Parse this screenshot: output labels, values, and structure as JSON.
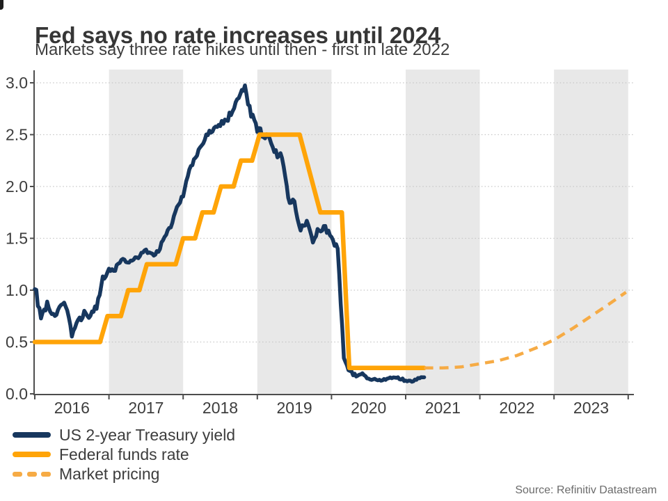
{
  "chart_data": {
    "type": "line",
    "title": "Fed says no rate increases until 2024",
    "subtitle": "Markets say three rate hikes until then - first in late 2022",
    "xlabel": "",
    "ylabel": "",
    "ylim": [
      0,
      3.1
    ],
    "x_range_years": [
      2016.0,
      2024.07
    ],
    "grid": "dotted-horizontal",
    "legend_position": "bottom-left",
    "shaded_years": [
      2017,
      2019,
      2021,
      2023
    ],
    "y_tick_values": [
      3.0,
      2.5,
      2.0,
      1.5,
      1.0,
      0.5,
      0.0
    ],
    "y_tick_labels": [
      "3.0",
      "2.5",
      "2.0",
      "1.5",
      "1.0",
      "0.5",
      "0.0"
    ],
    "x_tick_labels": [
      "2016",
      "2017",
      "2018",
      "2019",
      "2020",
      "2021",
      "2022",
      "2023"
    ],
    "series": [
      {
        "name": "US 2-year Treasury yield",
        "color": "#17375e",
        "style": "solid",
        "x_start": 2016.0,
        "x_step": 0.0833333,
        "values": [
          1.05,
          0.72,
          0.88,
          0.74,
          0.82,
          0.88,
          0.58,
          0.7,
          0.78,
          0.76,
          0.82,
          1.1,
          1.2,
          1.2,
          1.3,
          1.26,
          1.3,
          1.34,
          1.38,
          1.33,
          1.38,
          1.5,
          1.62,
          1.8,
          1.92,
          2.15,
          2.28,
          2.4,
          2.52,
          2.54,
          2.6,
          2.63,
          2.75,
          2.85,
          2.95,
          2.7,
          2.55,
          2.5,
          2.48,
          2.32,
          2.3,
          1.9,
          1.85,
          1.58,
          1.66,
          1.5,
          1.58,
          1.6,
          1.52,
          1.4,
          0.35,
          0.22,
          0.17,
          0.19,
          0.14,
          0.14,
          0.13,
          0.15,
          0.16,
          0.15,
          0.13,
          0.12,
          0.15,
          0.16
        ]
      },
      {
        "name": "Federal funds rate",
        "color": "#ffa408",
        "style": "solid",
        "points": [
          [
            2016.0,
            0.5
          ],
          [
            2016.88,
            0.5
          ],
          [
            2016.98,
            0.75
          ],
          [
            2017.16,
            0.75
          ],
          [
            2017.26,
            1.0
          ],
          [
            2017.41,
            1.0
          ],
          [
            2017.51,
            1.25
          ],
          [
            2017.9,
            1.25
          ],
          [
            2018.0,
            1.5
          ],
          [
            2018.16,
            1.5
          ],
          [
            2018.26,
            1.75
          ],
          [
            2018.41,
            1.75
          ],
          [
            2018.51,
            2.0
          ],
          [
            2018.68,
            2.0
          ],
          [
            2018.78,
            2.25
          ],
          [
            2018.93,
            2.25
          ],
          [
            2019.03,
            2.5
          ],
          [
            2019.57,
            2.5
          ],
          [
            2019.85,
            1.75
          ],
          [
            2020.14,
            1.75
          ],
          [
            2020.24,
            0.25
          ],
          [
            2021.25,
            0.25
          ]
        ]
      },
      {
        "name": "Market pricing",
        "color": "#f6ab45",
        "style": "dashed",
        "points": [
          [
            2021.25,
            0.25
          ],
          [
            2021.5,
            0.25
          ],
          [
            2021.75,
            0.26
          ],
          [
            2022.0,
            0.29
          ],
          [
            2022.25,
            0.32
          ],
          [
            2022.5,
            0.37
          ],
          [
            2022.75,
            0.44
          ],
          [
            2023.0,
            0.52
          ],
          [
            2023.25,
            0.63
          ],
          [
            2023.5,
            0.75
          ],
          [
            2023.75,
            0.87
          ],
          [
            2023.97,
            0.98
          ]
        ]
      }
    ]
  },
  "legend": [
    {
      "label": "US 2-year Treasury yield",
      "color": "#17375e",
      "style": "solid"
    },
    {
      "label": "Federal funds rate",
      "color": "#ffa408",
      "style": "solid"
    },
    {
      "label": "Market pricing",
      "color": "#f6ab45",
      "style": "dashed"
    }
  ],
  "source": "Source: Refinitiv Datastream",
  "colors": {
    "band": "#e8e8e8",
    "gridline": "#c6c6c6",
    "axis": "#4d4d4d",
    "tick_label": "#3d3d3d"
  }
}
